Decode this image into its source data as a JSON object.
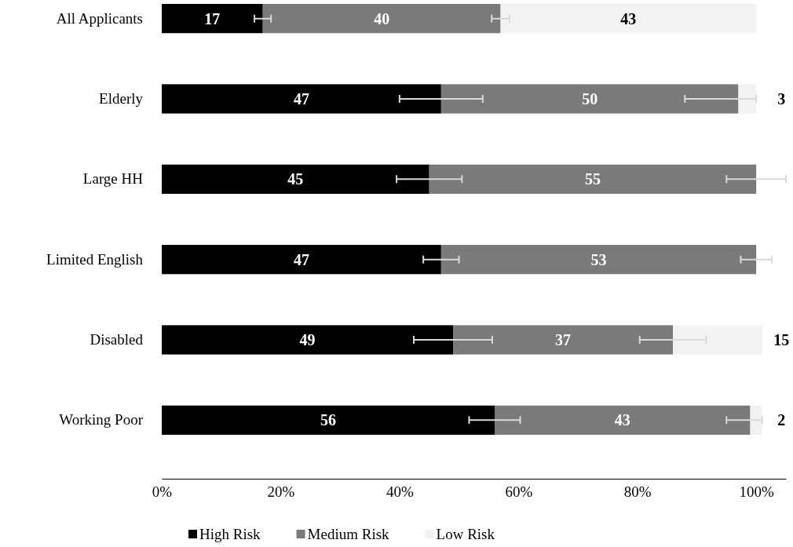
{
  "chart_data": {
    "type": "bar",
    "orientation": "horizontal",
    "stacked": true,
    "categories": [
      "All Applicants",
      "Elderly",
      "Large HH",
      "Limited English",
      "Disabled",
      "Working Poor"
    ],
    "series": [
      {
        "name": "High Risk",
        "color": "#000000",
        "values": [
          17,
          47,
          45,
          47,
          49,
          56
        ],
        "value_labels": [
          "17",
          "47",
          "45",
          "47",
          "49",
          "56"
        ],
        "errors": [
          1.4,
          7,
          5.5,
          3,
          6.6,
          4.3
        ]
      },
      {
        "name": "Medium Risk",
        "color": "#7a7a7a",
        "values": [
          40,
          50,
          55,
          53,
          37,
          43
        ],
        "value_labels": [
          "40",
          "50",
          "55",
          "53",
          "37",
          "43"
        ],
        "errors": [
          1.5,
          [
            88,
            100
          ],
          5,
          2.6,
          5.6,
          [
            95,
            101
          ]
        ]
      },
      {
        "name": "Low Risk",
        "color": "#f2f2f2",
        "values": [
          43,
          3,
          0,
          0,
          15,
          2
        ],
        "value_labels": [
          "43",
          "3",
          null,
          null,
          "15",
          "2"
        ]
      }
    ],
    "xlim": [
      0,
      105
    ],
    "xticks": [
      {
        "value": 0,
        "label": "0%"
      },
      {
        "value": 20,
        "label": "20%"
      },
      {
        "value": 40,
        "label": "40%"
      },
      {
        "value": 60,
        "label": "60%"
      },
      {
        "value": 80,
        "label": "80%"
      },
      {
        "value": 100,
        "label": "100%"
      }
    ],
    "grid": false,
    "legend": "bottom"
  }
}
